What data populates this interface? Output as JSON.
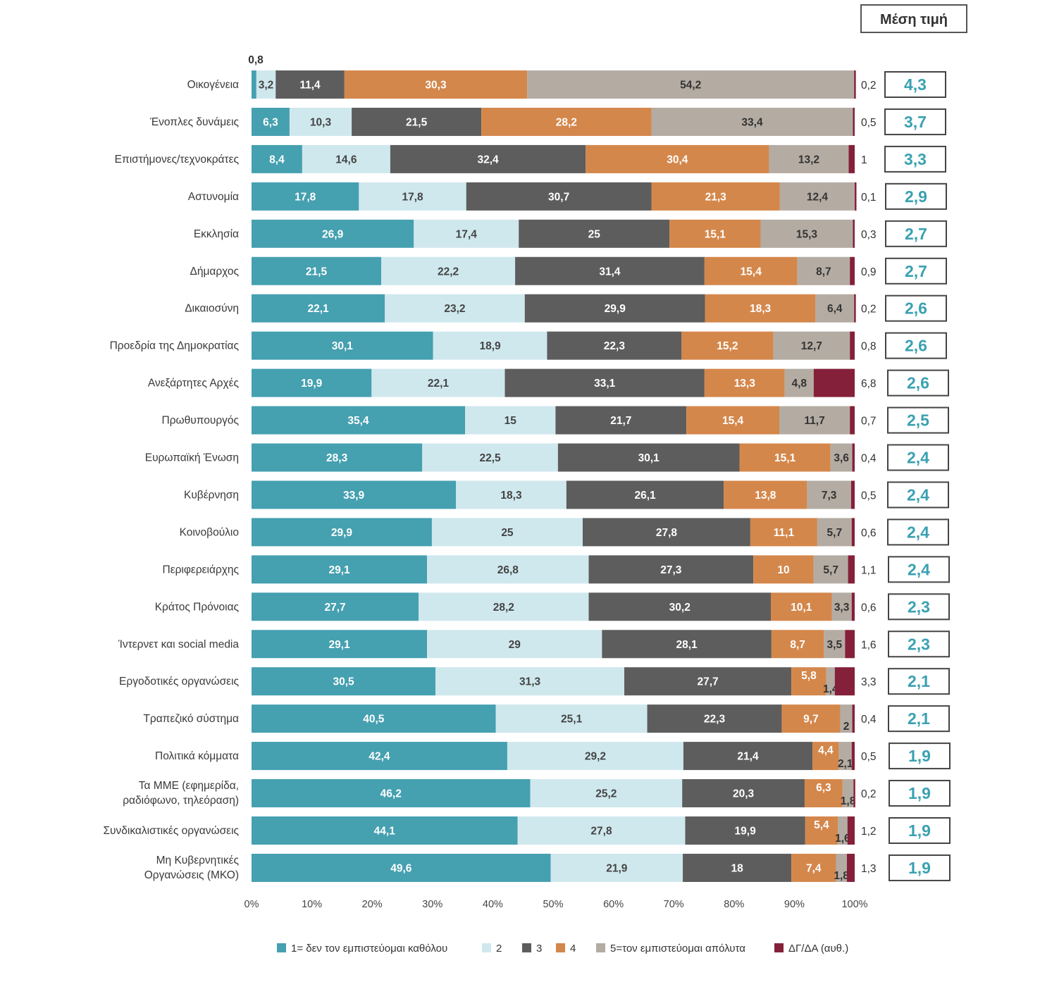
{
  "chart_data": {
    "type": "bar",
    "orientation": "horizontal",
    "stacked": true,
    "xlim": [
      0,
      100
    ],
    "x_ticks": [
      "0%",
      "10%",
      "20%",
      "30%",
      "40%",
      "50%",
      "60%",
      "70%",
      "80%",
      "90%",
      "100%"
    ],
    "mean_header": "Μέση τιμή",
    "categories": [
      "Οικογένεια",
      "Ένοπλες δυνάμεις",
      "Επιστήμονες/τεχνοκράτες",
      "Αστυνομία",
      "Εκκλησία",
      "Δήμαρχος",
      "Δικαιοσύνη",
      "Προεδρία της Δημοκρατίας",
      "Ανεξάρτητες Αρχές",
      "Πρωθυπουργός",
      "Ευρωπαϊκή Ένωση",
      "Κυβέρνηση",
      "Κοινοβούλιο",
      "Περιφερειάρχης",
      "Κράτος Πρόνοιας",
      "Ίντερνετ και social media",
      "Εργοδοτικές οργανώσεις",
      "Τραπεζικό σύστημα",
      "Πολιτικά κόμματα",
      "Τα ΜΜΕ (εφημερίδα, ραδιόφωνο, τηλεόραση)",
      "Συνδικαλιστικές οργανώσεις",
      "Μη Κυβερνητικές Οργανώσεις (ΜΚΟ)"
    ],
    "category_lines": [
      [
        "Οικογένεια"
      ],
      [
        "Ένοπλες δυνάμεις"
      ],
      [
        "Επιστήμονες/τεχνοκράτες"
      ],
      [
        "Αστυνομία"
      ],
      [
        "Εκκλησία"
      ],
      [
        "Δήμαρχος"
      ],
      [
        "Δικαιοσύνη"
      ],
      [
        "Προεδρία της Δημοκρατίας"
      ],
      [
        "Ανεξάρτητες Αρχές"
      ],
      [
        "Πρωθυπουργός"
      ],
      [
        "Ευρωπαϊκή Ένωση"
      ],
      [
        "Κυβέρνηση"
      ],
      [
        "Κοινοβούλιο"
      ],
      [
        "Περιφερειάρχης"
      ],
      [
        "Κράτος Πρόνοιας"
      ],
      [
        "Ίντερνετ και social media"
      ],
      [
        "Εργοδοτικές οργανώσεις"
      ],
      [
        "Τραπεζικό σύστημα"
      ],
      [
        "Πολιτικά κόμματα"
      ],
      [
        "Τα ΜΜΕ (εφημερίδα,",
        "ραδιόφωνο, τηλεόραση)"
      ],
      [
        "Συνδικαλιστικές οργανώσεις"
      ],
      [
        "Μη Κυβερνητικές",
        "Οργανώσεις (ΜΚΟ)"
      ]
    ],
    "series": [
      {
        "name": "1= δεν τον εμπιστεύομαι καθόλου",
        "color": "#45a0b0",
        "label_color": "#ffffff",
        "values": [
          0.8,
          6.3,
          8.4,
          17.8,
          26.9,
          21.5,
          22.1,
          30.1,
          19.9,
          35.4,
          28.3,
          33.9,
          29.9,
          29.1,
          27.7,
          29.1,
          30.5,
          40.5,
          42.4,
          46.2,
          44.1,
          49.6
        ]
      },
      {
        "name": "2",
        "color": "#cfe8ee",
        "label_color": "#444444",
        "values": [
          3.2,
          10.3,
          14.6,
          17.8,
          17.4,
          22.2,
          23.2,
          18.9,
          22.1,
          15,
          22.5,
          18.3,
          25,
          26.8,
          28.2,
          29,
          31.3,
          25.1,
          29.2,
          25.2,
          27.8,
          21.9
        ]
      },
      {
        "name": "3",
        "color": "#5d5d5d",
        "label_color": "#ffffff",
        "values": [
          11.4,
          21.5,
          32.4,
          30.7,
          25,
          31.4,
          29.9,
          22.3,
          33.1,
          21.7,
          30.1,
          26.1,
          27.8,
          27.3,
          30.2,
          28.1,
          27.7,
          22.3,
          21.4,
          20.3,
          19.9,
          18
        ]
      },
      {
        "name": "4",
        "color": "#d4874b",
        "label_color": "#ffffff",
        "values": [
          30.3,
          28.2,
          30.4,
          21.3,
          15.1,
          15.4,
          18.3,
          15.2,
          13.3,
          15.4,
          15.1,
          13.8,
          11.1,
          10,
          10.1,
          8.7,
          5.8,
          9.7,
          4.4,
          6.3,
          5.4,
          7.4
        ]
      },
      {
        "name": "5=τον εμπιστεύομαι απόλυτα",
        "color": "#b4aca3",
        "label_color": "#333333",
        "values": [
          54.2,
          33.4,
          13.2,
          12.4,
          15.3,
          8.7,
          6.4,
          12.7,
          4.8,
          11.7,
          3.6,
          7.3,
          5.7,
          5.7,
          3.3,
          3.5,
          1.4,
          2,
          2.1,
          1.8,
          1.6,
          1.8
        ]
      },
      {
        "name": "ΔΓ/ΔΑ (αυθ.)",
        "color": "#84203a",
        "label_color": "#333333",
        "values": [
          0.2,
          0.5,
          1,
          0.1,
          0.3,
          0.9,
          0.2,
          0.8,
          6.8,
          0.7,
          0.4,
          0.5,
          0.6,
          1.1,
          0.6,
          1.6,
          3.3,
          0.4,
          0.5,
          0.2,
          1.2,
          1.3
        ]
      }
    ],
    "mean_values": [
      "4,3",
      "3,7",
      "3,3",
      "2,9",
      "2,7",
      "2,7",
      "2,6",
      "2,6",
      "2,6",
      "2,5",
      "2,4",
      "2,4",
      "2,4",
      "2,4",
      "2,3",
      "2,3",
      "2,1",
      "2,1",
      "1,9",
      "1,9",
      "1,9",
      "1,9"
    ],
    "legend_position": "bottom"
  }
}
